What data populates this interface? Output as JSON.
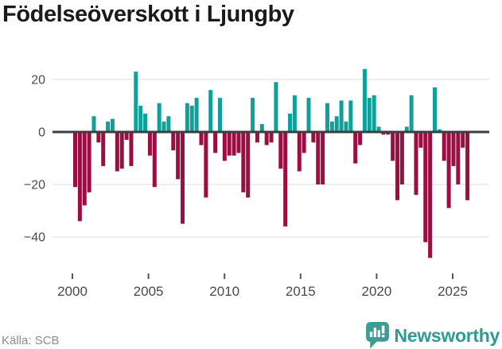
{
  "header": {
    "title": "Födelseöverskott i Ljungby"
  },
  "footer": {
    "source_label": "Källa: SCB",
    "brand": "Newsworthy",
    "brand_badge_icon": "bar-chart-exclamation-bubble",
    "brand_color": "#2e9a94"
  },
  "chart_data": {
    "type": "bar",
    "title": "Födelseöverskott i Ljungby",
    "xlabel": "",
    "ylabel": "",
    "x_axis": {
      "start_year": 2000,
      "end_year": 2025,
      "tick_years": [
        2000,
        2005,
        2010,
        2015,
        2020,
        2025
      ]
    },
    "y_ticks": [
      20,
      0,
      -20,
      -40
    ],
    "ylim": [
      -50,
      26
    ],
    "grid": "horizontal",
    "legend": "none",
    "colors": {
      "positive": "#10a09a",
      "negative": "#9a0e42"
    },
    "values": [
      -21,
      -34,
      -28,
      -23,
      6,
      -4,
      -13,
      4,
      5,
      -15,
      -14,
      -3,
      -13,
      23,
      10,
      7,
      -9,
      -21,
      11,
      4,
      6,
      -7,
      -18,
      -35,
      11,
      10,
      13,
      -5,
      -25,
      16,
      -8,
      13,
      -11,
      -9,
      -9,
      -8,
      -23,
      -25,
      13,
      -4,
      3,
      -5,
      -4,
      19,
      -14,
      -36,
      7,
      14,
      -15,
      -8,
      13,
      -4,
      -20,
      -20,
      11,
      4,
      6,
      12,
      4,
      12,
      -12,
      -5,
      24,
      13,
      14,
      2,
      -1,
      -1,
      -11,
      -26,
      -20,
      2,
      14,
      -24,
      -6,
      -42,
      -48,
      17,
      1,
      -11,
      -29,
      -13,
      -20,
      -6,
      -26
    ]
  }
}
